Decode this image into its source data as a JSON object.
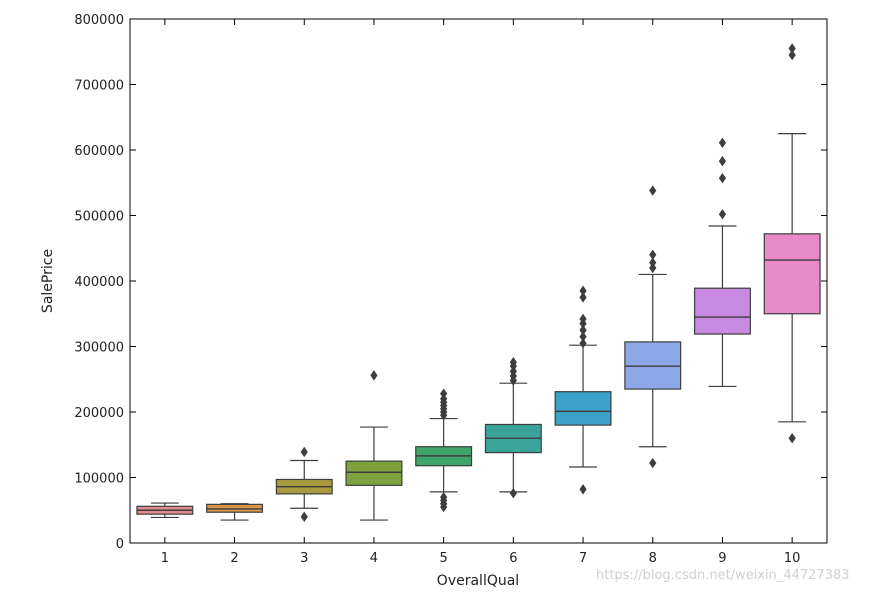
{
  "chart_data": {
    "type": "boxplot",
    "xlabel": "OverallQual",
    "ylabel": "SalePrice",
    "categories": [
      "1",
      "2",
      "3",
      "4",
      "5",
      "6",
      "7",
      "8",
      "9",
      "10"
    ],
    "ylim": [
      0,
      800000
    ],
    "yticks": [
      0,
      100000,
      200000,
      300000,
      400000,
      500000,
      600000,
      700000,
      800000
    ],
    "ytick_labels": [
      "0",
      "100000",
      "200000",
      "300000",
      "400000",
      "500000",
      "600000",
      "700000",
      "800000"
    ],
    "grid": false,
    "boxes": [
      {
        "label": "1",
        "color": "#e08c8c",
        "whislo": 39000,
        "q1": 44000,
        "median": 50000,
        "q3": 56000,
        "whishi": 61000,
        "fliers": []
      },
      {
        "label": "2",
        "color": "#d9954a",
        "whislo": 35000,
        "q1": 47000,
        "median": 52000,
        "q3": 59000,
        "whishi": 60000,
        "fliers": []
      },
      {
        "label": "3",
        "color": "#a89a3e",
        "whislo": 53000,
        "q1": 75000,
        "median": 86000,
        "q3": 97000,
        "whishi": 126000,
        "fliers": [
          40000,
          139000
        ]
      },
      {
        "label": "4",
        "color": "#7ea33e",
        "whislo": 35000,
        "q1": 88000,
        "median": 108000,
        "q3": 125000,
        "whishi": 177000,
        "fliers": [
          256000
        ]
      },
      {
        "label": "5",
        "color": "#3fa66a",
        "whislo": 78000,
        "q1": 118000,
        "median": 133000,
        "q3": 147000,
        "whishi": 190000,
        "fliers": [
          55000,
          60000,
          65000,
          70000,
          195000,
          200000,
          205000,
          210000,
          215000,
          220000,
          228000
        ]
      },
      {
        "label": "6",
        "color": "#3aa39a",
        "whislo": 78000,
        "q1": 138000,
        "median": 160000,
        "q3": 181000,
        "whishi": 244000,
        "fliers": [
          76000,
          248000,
          255000,
          262000,
          270000,
          276000
        ]
      },
      {
        "label": "7",
        "color": "#3aa2c8",
        "whislo": 116000,
        "q1": 180000,
        "median": 201000,
        "q3": 231000,
        "whishi": 302000,
        "fliers": [
          82000,
          305000,
          315000,
          325000,
          335000,
          342000,
          375000,
          385000
        ]
      },
      {
        "label": "8",
        "color": "#8da8e8",
        "whislo": 147000,
        "q1": 235000,
        "median": 270000,
        "q3": 307000,
        "whishi": 410000,
        "fliers": [
          122000,
          420000,
          428000,
          440000,
          538000
        ]
      },
      {
        "label": "9",
        "color": "#c88ae0",
        "whislo": 239000,
        "q1": 319000,
        "median": 345000,
        "q3": 389000,
        "whishi": 484000,
        "fliers": [
          502000,
          557000,
          583000,
          611000
        ]
      },
      {
        "label": "10",
        "color": "#e88ac8",
        "whislo": 185000,
        "q1": 350000,
        "median": 432000,
        "q3": 472000,
        "whishi": 625000,
        "fliers": [
          160000,
          745000,
          755000
        ]
      }
    ]
  },
  "colors": {
    "line": "#3d3d3d",
    "axis": "#000000",
    "flier": "#3d3d3d"
  },
  "watermark": "https://blog.csdn.net/weixin_44727383"
}
